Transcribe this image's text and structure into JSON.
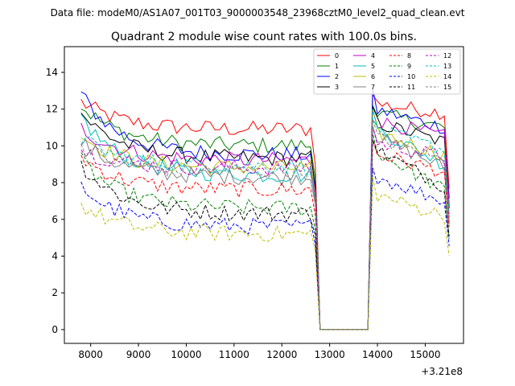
{
  "subtitle": "Data file: modeM0/AS1A07_001T03_9000003548_23968cztM0_level2_quad_clean.evt",
  "chart_data": {
    "type": "line",
    "title": "Quadrant 2 module wise count rates with 100.0s bins.",
    "offset_label": "+3.21e8",
    "xlim": [
      7450,
      15800
    ],
    "ylim": [
      -0.75,
      15.4
    ],
    "xticks": [
      8000,
      9000,
      10000,
      11000,
      12000,
      13000,
      14000,
      15000
    ],
    "yticks": [
      0,
      2,
      4,
      6,
      8,
      10,
      12,
      14
    ],
    "x_start": 7800,
    "x_step": 100,
    "gap_start": 12800,
    "gap_end": 13800,
    "series": [
      {
        "name": "0",
        "color": "#ff0000",
        "dash": false,
        "level": 10.9,
        "start": 12.4,
        "end": 11.8,
        "post": 12.3
      },
      {
        "name": "1",
        "color": "#008000",
        "dash": false,
        "level": 10.0,
        "start": 12.2,
        "end": 11.0,
        "post": 11.8
      },
      {
        "name": "2",
        "color": "#0000ff",
        "dash": false,
        "level": 9.5,
        "start": 12.8,
        "end": 11.0,
        "post": 12.0
      },
      {
        "name": "3",
        "color": "#000000",
        "dash": false,
        "level": 9.3,
        "start": 11.8,
        "end": 10.2,
        "post": 11.3
      },
      {
        "name": "4",
        "color": "#c000c0",
        "dash": false,
        "level": 9.2,
        "start": 11.0,
        "end": 10.5,
        "post": 11.4
      },
      {
        "name": "5",
        "color": "#00bfbf",
        "dash": false,
        "level": 8.4,
        "start": 11.6,
        "end": 9.0,
        "post": 11.0
      },
      {
        "name": "6",
        "color": "#bfbf00",
        "dash": false,
        "level": 8.8,
        "start": 10.6,
        "end": 9.5,
        "post": 10.8
      },
      {
        "name": "7",
        "color": "#808080",
        "dash": false,
        "level": 8.3,
        "start": 10.2,
        "end": 8.8,
        "post": 10.6
      },
      {
        "name": "8",
        "color": "#ff0000",
        "dash": true,
        "level": 7.6,
        "start": 9.4,
        "end": 8.6,
        "post": 9.6
      },
      {
        "name": "9",
        "color": "#008000",
        "dash": true,
        "level": 6.6,
        "start": 9.2,
        "end": 7.6,
        "post": 9.8
      },
      {
        "name": "10",
        "color": "#0000ff",
        "dash": true,
        "level": 5.6,
        "start": 7.8,
        "end": 7.0,
        "post": 8.4
      },
      {
        "name": "11",
        "color": "#000000",
        "dash": true,
        "level": 6.3,
        "start": 9.0,
        "end": 7.8,
        "post": 9.9
      },
      {
        "name": "12",
        "color": "#c000c0",
        "dash": true,
        "level": 8.8,
        "start": 9.8,
        "end": 9.4,
        "post": 10.2
      },
      {
        "name": "13",
        "color": "#00bfbf",
        "dash": true,
        "level": 8.9,
        "start": 10.4,
        "end": 9.8,
        "post": 10.9
      },
      {
        "name": "14",
        "color": "#bfbf00",
        "dash": true,
        "level": 5.2,
        "start": 6.8,
        "end": 6.2,
        "post": 7.4
      },
      {
        "name": "15",
        "color": "#808080",
        "dash": true,
        "level": 8.6,
        "start": 10.0,
        "end": 9.2,
        "post": 10.5
      }
    ]
  }
}
